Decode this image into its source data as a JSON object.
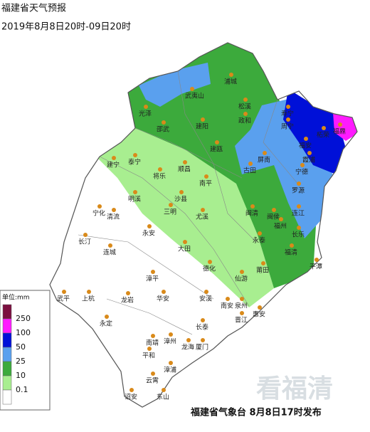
{
  "header": {
    "title": "福建省天气预报",
    "period": "2019年8月8日20时-09日20时"
  },
  "legend": {
    "unit": "单位:mm",
    "levels": [
      250,
      100,
      50,
      25,
      10,
      0.1
    ],
    "colors": [
      "#7b0f3f",
      "#ff1aff",
      "#0010d8",
      "#5aa0ee",
      "#3caa3c",
      "#a8ee90",
      "#ffffff"
    ]
  },
  "cities": [
    "浦城",
    "武夷山",
    "松溪",
    "政和",
    "光泽",
    "邵武",
    "建阳",
    "建瓯",
    "屏南",
    "周宁",
    "寿宁",
    "福鼎",
    "柘荣",
    "福安",
    "霞浦",
    "宁德",
    "古田",
    "罗源",
    "连江",
    "闽清",
    "闽侯",
    "福州",
    "长乐",
    "福清",
    "平潭",
    "永泰",
    "泰宁",
    "将乐",
    "顺昌",
    "南平",
    "尤溪",
    "建宁",
    "明溪",
    "沙县",
    "三明",
    "宁化",
    "清流",
    "永安",
    "大田",
    "德化",
    "仙游",
    "莆田",
    "长汀",
    "连城",
    "漳平",
    "安溪",
    "南安",
    "泉州",
    "晋江",
    "惠安",
    "武平",
    "上杭",
    "龙岩",
    "永定",
    "华安",
    "长泰",
    "厦门",
    "漳州",
    "南靖",
    "平和",
    "龙海",
    "漳浦",
    "云霄",
    "诏安",
    "东山"
  ],
  "footer": "福建省气象台 8月8日17时发布",
  "watermark": "看福清"
}
